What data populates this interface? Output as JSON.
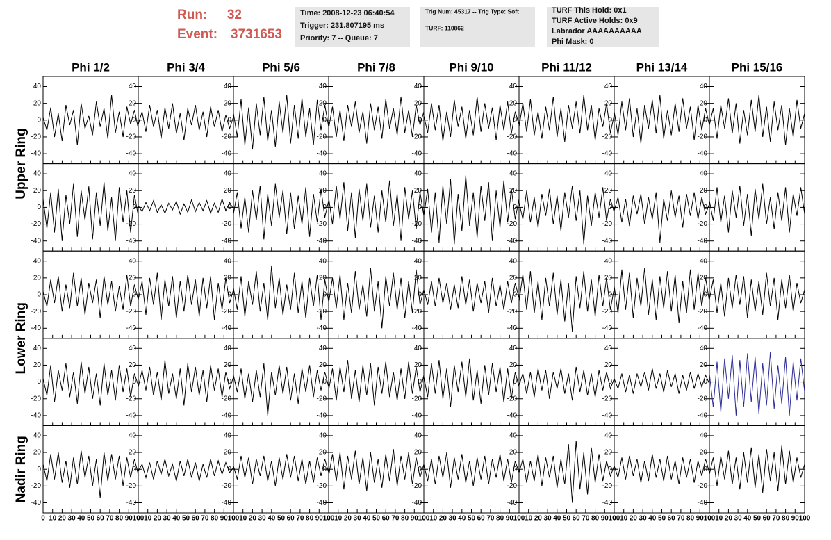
{
  "header": {
    "run_label": "Run:",
    "run": 32,
    "event_label": "Event:",
    "event": 3731653,
    "info_boxes": [
      [
        "Time: 2008-12-23 06:40:54",
        "Trigger: 231.807195 ms",
        "Priority: 7 -- Queue: 7"
      ],
      [
        "Trig Num: 45317 -- Trig Type: Soft",
        "TURF: 110862"
      ],
      [
        "TURF This Hold: 0x1",
        "TURF Active Holds: 0x9",
        "Labrador AAAAAAAAAA",
        "Phi Mask: 0"
      ]
    ]
  },
  "columns": [
    "Phi 1/2",
    "Phi 3/4",
    "Phi 5/6",
    "Phi 7/8",
    "Phi 9/10",
    "Phi 11/12",
    "Phi 13/14",
    "Phi 15/16"
  ],
  "ring_labels": [
    "Upper Ring",
    "Lower Ring",
    "Nadir Ring"
  ],
  "xlim": [
    0,
    100
  ],
  "ylim": [
    -52,
    52
  ],
  "xticks": [
    0,
    10,
    20,
    30,
    40,
    50,
    60,
    70,
    80,
    90,
    100
  ],
  "yticks": [
    -40,
    -20,
    0,
    20,
    40
  ],
  "line_color": "#000000",
  "x": [
    0,
    4,
    8,
    12,
    16,
    20,
    24,
    28,
    32,
    36,
    40,
    44,
    48,
    52,
    56,
    60,
    64,
    68,
    72,
    76,
    80,
    84,
    88,
    92,
    96,
    100
  ],
  "panels": [
    [
      {
        "values": [
          3,
          -12,
          15,
          -20,
          8,
          -25,
          18,
          -6,
          12,
          -30,
          20,
          -10,
          5,
          -18,
          22,
          -8,
          14,
          -22,
          30,
          -15,
          10,
          -20,
          16,
          -5,
          12,
          -10
        ]
      },
      {
        "values": [
          -5,
          10,
          -14,
          18,
          -8,
          12,
          -22,
          15,
          -10,
          20,
          -16,
          8,
          -24,
          14,
          -6,
          18,
          -12,
          10,
          -20,
          16,
          -8,
          12,
          -14,
          6,
          -10,
          4
        ]
      },
      {
        "values": [
          8,
          -20,
          25,
          -30,
          15,
          -35,
          20,
          -18,
          28,
          -25,
          12,
          -32,
          22,
          -15,
          30,
          -28,
          18,
          -22,
          26,
          -20,
          14,
          -30,
          24,
          -12,
          18,
          -8
        ]
      },
      {
        "values": [
          -10,
          16,
          -20,
          12,
          -25,
          18,
          -8,
          22,
          -15,
          10,
          -28,
          20,
          -12,
          16,
          -22,
          25,
          -10,
          14,
          -18,
          28,
          -15,
          12,
          -20,
          18,
          -6,
          10
        ]
      },
      {
        "values": [
          5,
          -15,
          20,
          -12,
          18,
          -25,
          10,
          -20,
          24,
          -8,
          16,
          -22,
          12,
          -18,
          28,
          -14,
          20,
          -10,
          15,
          -24,
          18,
          -12,
          22,
          -16,
          10,
          -5
        ]
      },
      {
        "values": [
          -8,
          20,
          -14,
          25,
          -18,
          10,
          -22,
          16,
          -12,
          28,
          -20,
          14,
          -26,
          18,
          -10,
          22,
          -16,
          30,
          -12,
          18,
          -24,
          14,
          -8,
          20,
          -15,
          6
        ]
      },
      {
        "values": [
          10,
          -18,
          22,
          -12,
          26,
          -20,
          14,
          -28,
          18,
          -10,
          24,
          -16,
          30,
          -22,
          12,
          -18,
          20,
          -14,
          26,
          -10,
          16,
          -24,
          18,
          -12,
          14,
          -6
        ]
      },
      {
        "values": [
          -6,
          14,
          -22,
          18,
          -10,
          26,
          -16,
          20,
          -28,
          12,
          -18,
          24,
          -14,
          30,
          -20,
          16,
          -26,
          22,
          -12,
          18,
          -30,
          14,
          -20,
          24,
          -10,
          8
        ]
      }
    ],
    [
      {
        "values": [
          10,
          -25,
          18,
          -30,
          22,
          -40,
          15,
          -20,
          28,
          -35,
          20,
          -15,
          25,
          -38,
          18,
          -22,
          30,
          -28,
          12,
          -40,
          24,
          -18,
          20,
          -30,
          15,
          -10
        ]
      },
      {
        "values": [
          2,
          -5,
          6,
          -4,
          8,
          -6,
          3,
          -7,
          5,
          -3,
          7,
          -8,
          4,
          -6,
          9,
          -5,
          6,
          -4,
          8,
          -7,
          5,
          -6,
          10,
          -4,
          6,
          -2
        ]
      },
      {
        "values": [
          -8,
          18,
          -25,
          12,
          -30,
          20,
          -15,
          26,
          -38,
          16,
          -22,
          28,
          -12,
          20,
          -32,
          18,
          -26,
          14,
          -20,
          24,
          -35,
          16,
          -18,
          22,
          -12,
          8
        ]
      },
      {
        "values": [
          12,
          -20,
          26,
          -14,
          30,
          -28,
          18,
          -36,
          22,
          -16,
          28,
          -24,
          14,
          -30,
          20,
          -18,
          32,
          -22,
          16,
          -40,
          24,
          -14,
          20,
          -26,
          18,
          -10
        ]
      },
      {
        "values": [
          -10,
          22,
          -30,
          18,
          -42,
          26,
          -20,
          34,
          -44,
          16,
          -28,
          38,
          -22,
          18,
          -36,
          26,
          -16,
          30,
          -40,
          20,
          -24,
          32,
          -18,
          22,
          -14,
          10
        ]
      },
      {
        "values": [
          6,
          -14,
          20,
          -18,
          12,
          -24,
          16,
          -10,
          22,
          -20,
          14,
          -28,
          18,
          -12,
          26,
          -16,
          20,
          -44,
          14,
          -22,
          18,
          -12,
          24,
          -16,
          10,
          -6
        ]
      },
      {
        "values": [
          -4,
          12,
          -18,
          10,
          -22,
          14,
          -8,
          16,
          -20,
          12,
          -14,
          18,
          -42,
          10,
          -16,
          20,
          -12,
          14,
          -24,
          16,
          -10,
          18,
          -14,
          12,
          -8,
          4
        ]
      },
      {
        "values": [
          8,
          -16,
          24,
          -18,
          14,
          -30,
          20,
          -12,
          26,
          -22,
          16,
          -34,
          22,
          -14,
          28,
          -20,
          12,
          -26,
          18,
          -16,
          24,
          -30,
          16,
          -10,
          24,
          -8
        ]
      }
    ],
    [
      {
        "values": [
          4,
          -14,
          18,
          -10,
          22,
          -20,
          12,
          -16,
          26,
          -14,
          20,
          -24,
          14,
          -10,
          18,
          -28,
          22,
          -12,
          16,
          -20,
          10,
          -18,
          24,
          -14,
          12,
          -6
        ]
      },
      {
        "values": [
          -6,
          16,
          -24,
          20,
          -12,
          26,
          -30,
          18,
          -14,
          22,
          -28,
          16,
          -20,
          24,
          -12,
          18,
          -26,
          20,
          -16,
          22,
          -30,
          14,
          -18,
          20,
          -10,
          6
        ]
      },
      {
        "values": [
          8,
          -18,
          22,
          -26,
          16,
          -12,
          28,
          -20,
          14,
          -30,
          34,
          -16,
          20,
          -24,
          12,
          -18,
          26,
          -22,
          16,
          -28,
          20,
          -14,
          24,
          -30,
          18,
          -8
        ]
      },
      {
        "values": [
          -10,
          20,
          -16,
          24,
          -30,
          14,
          -22,
          28,
          -18,
          12,
          -26,
          32,
          -20,
          16,
          -40,
          22,
          -14,
          26,
          -18,
          20,
          -28,
          16,
          -22,
          30,
          -12,
          6
        ]
      },
      {
        "values": [
          6,
          -12,
          16,
          -14,
          20,
          -10,
          14,
          -18,
          12,
          -16,
          22,
          -12,
          18,
          -20,
          14,
          -10,
          16,
          -22,
          20,
          -14,
          12,
          -18,
          16,
          -10,
          14,
          -4
        ]
      },
      {
        "values": [
          -8,
          24,
          -18,
          28,
          -22,
          16,
          -30,
          20,
          -14,
          26,
          -24,
          18,
          -32,
          14,
          -44,
          22,
          -16,
          28,
          -20,
          18,
          -26,
          24,
          -14,
          20,
          -18,
          8
        ]
      },
      {
        "values": [
          10,
          -22,
          30,
          -18,
          26,
          -28,
          20,
          -14,
          32,
          -24,
          18,
          -30,
          22,
          -16,
          28,
          -20,
          24,
          -34,
          16,
          -22,
          30,
          -18,
          26,
          -14,
          20,
          -8
        ]
      },
      {
        "values": [
          -6,
          18,
          -22,
          14,
          -26,
          20,
          -16,
          24,
          -12,
          22,
          -28,
          18,
          -20,
          16,
          -24,
          26,
          -14,
          20,
          -30,
          18,
          -16,
          24,
          -20,
          14,
          -10,
          6
        ]
      }
    ],
    [
      {
        "values": [
          4,
          -16,
          20,
          -24,
          14,
          -10,
          22,
          -18,
          12,
          -26,
          24,
          -14,
          18,
          -20,
          10,
          -28,
          22,
          -16,
          14,
          -22,
          20,
          -12,
          16,
          -18,
          10,
          -4
        ]
      },
      {
        "values": [
          -6,
          14,
          -10,
          18,
          -16,
          12,
          -22,
          26,
          -14,
          10,
          -20,
          16,
          -28,
          22,
          -12,
          18,
          -16,
          14,
          -24,
          20,
          -10,
          16,
          -18,
          12,
          -8,
          6
        ]
      },
      {
        "values": [
          8,
          -12,
          16,
          -20,
          10,
          -24,
          14,
          -18,
          22,
          -40,
          12,
          -16,
          20,
          -14,
          18,
          -22,
          10,
          -26,
          16,
          -12,
          20,
          -18,
          14,
          -10,
          12,
          -6
        ]
      },
      {
        "values": [
          -10,
          16,
          -22,
          18,
          -12,
          26,
          -20,
          14,
          -24,
          20,
          -16,
          22,
          -28,
          18,
          -14,
          24,
          -18,
          12,
          -22,
          16,
          -20,
          24,
          -14,
          18,
          -12,
          8
        ]
      },
      {
        "values": [
          6,
          -18,
          22,
          -14,
          26,
          -20,
          16,
          -30,
          20,
          -12,
          24,
          -18,
          28,
          -22,
          14,
          -26,
          20,
          -16,
          22,
          -12,
          18,
          -24,
          16,
          -20,
          12,
          -6
        ]
      },
      {
        "values": [
          -4,
          10,
          -14,
          12,
          -18,
          16,
          -10,
          14,
          -20,
          12,
          -8,
          16,
          -14,
          10,
          -22,
          18,
          -12,
          14,
          -16,
          10,
          -18,
          14,
          -10,
          12,
          -8,
          4
        ]
      },
      {
        "values": [
          4,
          -8,
          10,
          -12,
          8,
          -14,
          10,
          -6,
          12,
          -10,
          16,
          -8,
          10,
          -12,
          14,
          -6,
          10,
          -14,
          8,
          -10,
          12,
          -8,
          10,
          -6,
          8,
          -2
        ]
      },
      {
        "values": [
          10,
          -30,
          24,
          -36,
          28,
          -20,
          32,
          -40,
          26,
          -30,
          34,
          -24,
          30,
          -38,
          22,
          -28,
          36,
          -32,
          20,
          -26,
          30,
          -40,
          24,
          -22,
          28,
          -12
        ],
        "color": "#2b2b96"
      }
    ],
    [
      {
        "values": [
          6,
          -14,
          18,
          -12,
          20,
          -16,
          10,
          -22,
          14,
          -18,
          22,
          -10,
          16,
          -20,
          12,
          -34,
          20,
          -14,
          18,
          -12,
          16,
          -20,
          14,
          -10,
          12,
          -6
        ]
      },
      {
        "values": [
          -2,
          6,
          -10,
          8,
          -12,
          10,
          -6,
          12,
          -8,
          6,
          -14,
          10,
          -8,
          12,
          -10,
          8,
          -14,
          6,
          -10,
          12,
          -8,
          10,
          -6,
          8,
          -4,
          2
        ]
      },
      {
        "values": [
          4,
          -12,
          16,
          -10,
          14,
          -18,
          12,
          -8,
          16,
          -14,
          10,
          -20,
          14,
          -12,
          18,
          -10,
          16,
          -14,
          12,
          -18,
          10,
          -16,
          14,
          -8,
          12,
          -4
        ]
      },
      {
        "values": [
          -8,
          18,
          -14,
          20,
          -24,
          16,
          -12,
          22,
          -18,
          14,
          -26,
          20,
          -16,
          12,
          -22,
          18,
          -14,
          24,
          -20,
          16,
          -12,
          20,
          -18,
          14,
          -10,
          6
        ]
      },
      {
        "values": [
          6,
          -14,
          12,
          -18,
          16,
          -10,
          20,
          -22,
          14,
          -12,
          18,
          -16,
          10,
          -20,
          14,
          -12,
          16,
          -18,
          12,
          -10,
          18,
          -14,
          12,
          -16,
          10,
          -4
        ]
      },
      {
        "values": [
          -4,
          12,
          -16,
          10,
          -14,
          18,
          -20,
          14,
          -10,
          16,
          -22,
          12,
          -18,
          30,
          -40,
          34,
          -24,
          20,
          -30,
          26,
          -16,
          18,
          -14,
          10,
          -8,
          4
        ]
      },
      {
        "values": [
          4,
          -10,
          14,
          -12,
          16,
          -8,
          12,
          -16,
          10,
          -14,
          18,
          -10,
          12,
          -14,
          16,
          -12,
          10,
          -18,
          14,
          -10,
          12,
          -16,
          10,
          -8,
          12,
          -4
        ]
      },
      {
        "values": [
          -6,
          14,
          -20,
          16,
          -12,
          22,
          -18,
          14,
          -24,
          20,
          -16,
          26,
          -22,
          18,
          -28,
          24,
          -14,
          20,
          -26,
          28,
          -18,
          22,
          -16,
          14,
          -10,
          6
        ]
      }
    ]
  ]
}
